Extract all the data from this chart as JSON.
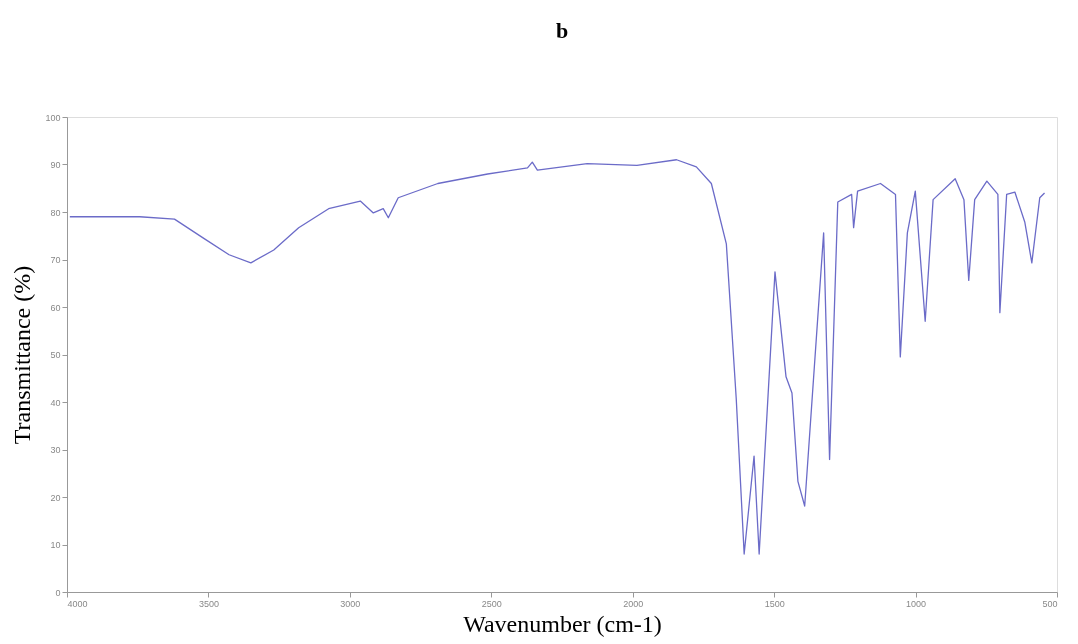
{
  "chart_data": {
    "type": "line",
    "title": "b",
    "xlabel": "Wavenumber (cm-1)",
    "ylabel": "Transmittance (%)",
    "xlim": [
      4000,
      500
    ],
    "xticks": [
      4000,
      3500,
      3000,
      2500,
      2000,
      1500,
      1000,
      500
    ],
    "ylim": [
      0,
      100
    ],
    "yticks": [
      0,
      10,
      20,
      30,
      40,
      50,
      60,
      70,
      80,
      90,
      100
    ],
    "grid": false,
    "marker": "none",
    "line_style": "solid",
    "series": [
      {
        "color": "#6b6bc8",
        "x": [
          3990,
          3743,
          3620,
          3515,
          3427,
          3350,
          3269,
          3181,
          3075,
          2963,
          2917,
          2882,
          2864,
          2829,
          2689,
          2513,
          2372,
          2355,
          2337,
          2161,
          1985,
          1845,
          1775,
          1722,
          1669,
          1634,
          1606,
          1571,
          1553,
          1497,
          1458,
          1437,
          1416,
          1392,
          1325,
          1304,
          1275,
          1226,
          1219,
          1205,
          1124,
          1071,
          1054,
          1029,
          1001,
          966,
          938,
          860,
          829,
          812,
          791,
          748,
          709,
          702,
          678,
          649,
          614,
          589,
          561,
          544
        ],
        "values": [
          79,
          79,
          78.5,
          74.4,
          71,
          69.3,
          72,
          76.7,
          80.7,
          82.3,
          79.8,
          80.7,
          78.8,
          83,
          86,
          88,
          89.3,
          90.5,
          88.8,
          90.2,
          89.8,
          91,
          89.5,
          86,
          73.3,
          40.7,
          8,
          28.6,
          8,
          67.4,
          45.3,
          41.9,
          23.3,
          18.1,
          75.6,
          27.9,
          82.1,
          83.7,
          76.7,
          84.4,
          86,
          83.7,
          49.5,
          75.6,
          84.4,
          57,
          82.6,
          87,
          82.6,
          65.6,
          82.6,
          86.5,
          83.7,
          58.8,
          83.7,
          84.2,
          77.9,
          69.3,
          83,
          84
        ]
      }
    ]
  }
}
